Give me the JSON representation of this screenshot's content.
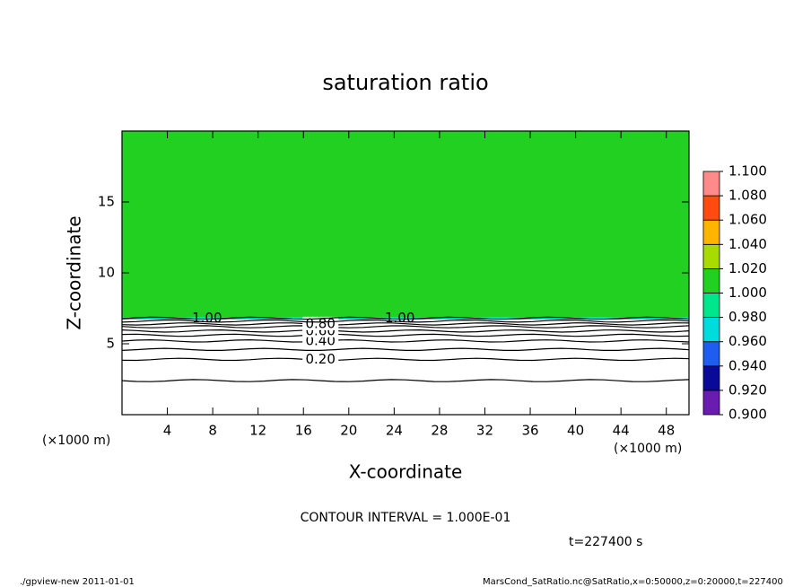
{
  "chart_data": {
    "type": "contour",
    "title": "saturation ratio",
    "x_label": "X-coordinate",
    "y_label": "Z-coordinate",
    "x_unit": "(×1000 m)",
    "xlim": [
      0,
      50
    ],
    "ylim": [
      0,
      20
    ],
    "xticks": [
      4,
      8,
      12,
      16,
      20,
      24,
      28,
      32,
      36,
      40,
      44,
      48
    ],
    "yticks": [
      5,
      10,
      15
    ],
    "contours": {
      "levels": [
        0.1,
        0.2,
        0.3,
        0.4,
        0.5,
        0.6,
        0.7,
        0.8,
        0.9,
        1.0
      ],
      "z": [
        2.4,
        3.9,
        4.6,
        5.2,
        5.6,
        5.9,
        6.2,
        6.4,
        6.6,
        6.8
      ],
      "labels": [
        null,
        "0.20",
        null,
        "0.40",
        null,
        "0.60",
        null,
        "0.80",
        null,
        "1.00"
      ]
    },
    "colorbar": {
      "ticks": [
        {
          "value": 0.9,
          "label": "0.900"
        },
        {
          "value": 0.92,
          "label": "0.920"
        },
        {
          "value": 0.94,
          "label": "0.940"
        },
        {
          "value": 0.96,
          "label": "0.960"
        },
        {
          "value": 0.98,
          "label": "0.980"
        },
        {
          "value": 1.0,
          "label": "1.000"
        },
        {
          "value": 1.02,
          "label": "1.020"
        },
        {
          "value": 1.04,
          "label": "1.040"
        },
        {
          "value": 1.06,
          "label": "1.060"
        },
        {
          "value": 1.08,
          "label": "1.080"
        },
        {
          "value": 1.1,
          "label": "1.100"
        }
      ],
      "colors": [
        "#6a1bb0",
        "#0a0a9a",
        "#1f5cf0",
        "#00dcdc",
        "#00e68c",
        "#22d022",
        "#a8dc00",
        "#ffb400",
        "#ff4a10",
        "#ff8a8a"
      ]
    },
    "contour_interval": "CONTOUR INTERVAL = 1.000E-01",
    "time_label": "t=227400 s",
    "footer_left": "./gpview-new   2011-01-01",
    "footer_right": "MarsCond_SatRatio.nc@SatRatio,x=0:50000,z=0:20000,t=227400"
  }
}
